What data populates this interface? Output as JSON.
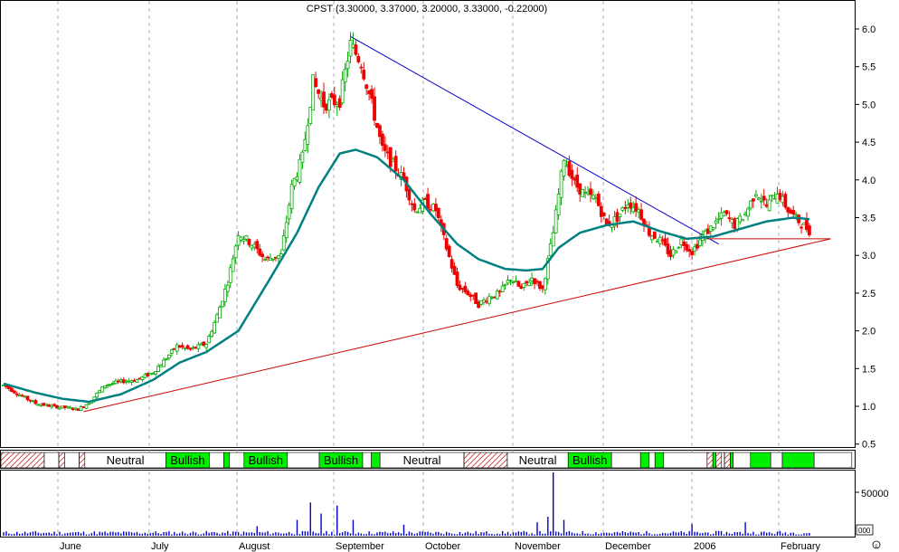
{
  "chart_data": {
    "type": "candlestick",
    "title": "CPST (3.30000, 3.37000, 3.20000, 3.33000, -0.22000)",
    "ohlc_last": {
      "open": 3.3,
      "high": 3.37,
      "low": 3.2,
      "close": 3.33,
      "change": -0.22
    },
    "x_labels": [
      "June",
      "July",
      "August",
      "September",
      "October",
      "November",
      "December",
      "2006",
      "February"
    ],
    "y_ticks": [
      0.5,
      1.0,
      1.5,
      2.0,
      2.5,
      3.0,
      3.5,
      4.0,
      4.5,
      5.0,
      5.5,
      6.0
    ],
    "ylim": [
      0.4,
      6.5
    ],
    "grid": "vertical-dashed",
    "price_path": [
      [
        0,
        1.28
      ],
      [
        6,
        1.15
      ],
      [
        12,
        1.04
      ],
      [
        18,
        1.0
      ],
      [
        24,
        0.98
      ],
      [
        28,
        0.96
      ],
      [
        32,
        1.05
      ],
      [
        38,
        1.28
      ],
      [
        44,
        1.33
      ],
      [
        50,
        1.35
      ],
      [
        56,
        1.45
      ],
      [
        60,
        1.6
      ],
      [
        65,
        1.8
      ],
      [
        70,
        1.75
      ],
      [
        76,
        1.83
      ],
      [
        80,
        2.2
      ],
      [
        84,
        2.65
      ],
      [
        88,
        3.3
      ],
      [
        93,
        3.15
      ],
      [
        98,
        2.95
      ],
      [
        104,
        3.0
      ],
      [
        108,
        3.9
      ],
      [
        112,
        4.3
      ],
      [
        116,
        5.3
      ],
      [
        120,
        5.0
      ],
      [
        126,
        5.05
      ],
      [
        130,
        5.8
      ],
      [
        134,
        5.55
      ],
      [
        138,
        5.0
      ],
      [
        142,
        4.4
      ],
      [
        146,
        4.2
      ],
      [
        150,
        4.0
      ],
      [
        154,
        3.6
      ],
      [
        158,
        3.7
      ],
      [
        162,
        3.6
      ],
      [
        166,
        3.1
      ],
      [
        170,
        2.6
      ],
      [
        174,
        2.5
      ],
      [
        178,
        2.35
      ],
      [
        182,
        2.45
      ],
      [
        186,
        2.5
      ],
      [
        190,
        2.7
      ],
      [
        194,
        2.55
      ],
      [
        198,
        2.7
      ],
      [
        202,
        2.55
      ],
      [
        206,
        3.3
      ],
      [
        210,
        4.3
      ],
      [
        214,
        3.95
      ],
      [
        218,
        3.8
      ],
      [
        222,
        3.75
      ],
      [
        226,
        3.4
      ],
      [
        230,
        3.5
      ],
      [
        234,
        3.7
      ],
      [
        238,
        3.6
      ],
      [
        242,
        3.3
      ],
      [
        246,
        3.2
      ],
      [
        250,
        3.0
      ],
      [
        254,
        3.2
      ],
      [
        258,
        3.05
      ],
      [
        262,
        3.25
      ],
      [
        266,
        3.4
      ],
      [
        270,
        3.55
      ],
      [
        274,
        3.4
      ],
      [
        278,
        3.55
      ],
      [
        282,
        3.85
      ],
      [
        286,
        3.65
      ],
      [
        290,
        3.85
      ],
      [
        294,
        3.6
      ],
      [
        298,
        3.45
      ],
      [
        302,
        3.33
      ]
    ],
    "moving_average": {
      "color": "#008080",
      "values": [
        [
          0,
          1.3
        ],
        [
          12,
          1.18
        ],
        [
          22,
          1.1
        ],
        [
          32,
          1.06
        ],
        [
          44,
          1.16
        ],
        [
          56,
          1.35
        ],
        [
          66,
          1.58
        ],
        [
          76,
          1.72
        ],
        [
          88,
          2.0
        ],
        [
          100,
          2.7
        ],
        [
          110,
          3.3
        ],
        [
          118,
          3.9
        ],
        [
          126,
          4.35
        ],
        [
          132,
          4.4
        ],
        [
          140,
          4.3
        ],
        [
          150,
          4.0
        ],
        [
          160,
          3.55
        ],
        [
          170,
          3.15
        ],
        [
          178,
          2.95
        ],
        [
          188,
          2.82
        ],
        [
          196,
          2.8
        ],
        [
          202,
          2.82
        ],
        [
          208,
          3.1
        ],
        [
          216,
          3.3
        ],
        [
          226,
          3.4
        ],
        [
          236,
          3.45
        ],
        [
          246,
          3.32
        ],
        [
          256,
          3.22
        ],
        [
          266,
          3.25
        ],
        [
          276,
          3.35
        ],
        [
          286,
          3.45
        ],
        [
          296,
          3.5
        ],
        [
          302,
          3.48
        ]
      ]
    },
    "trendlines": [
      {
        "name": "resistance",
        "color": "#0000cc",
        "from": [
          130,
          5.9
        ],
        "to": [
          268,
          3.15
        ]
      },
      {
        "name": "support",
        "color": "#cc0000",
        "from": [
          30,
          0.93
        ],
        "to": [
          310,
          3.22
        ]
      },
      {
        "name": "horizontal",
        "color": "#cc0000",
        "from": [
          262,
          3.22
        ],
        "to": [
          310,
          3.22
        ]
      }
    ],
    "indicator_bands": [
      {
        "state": "bearish",
        "start": 0,
        "end": 15,
        "label": ""
      },
      {
        "state": "neutral",
        "start": 15,
        "end": 20,
        "label": ""
      },
      {
        "state": "bearish",
        "start": 20,
        "end": 22,
        "label": ""
      },
      {
        "state": "neutral",
        "start": 22,
        "end": 27,
        "label": ""
      },
      {
        "state": "bearish",
        "start": 27,
        "end": 29,
        "label": ""
      },
      {
        "state": "neutral",
        "start": 29,
        "end": 57,
        "label": "Neutral"
      },
      {
        "state": "bullish",
        "start": 57,
        "end": 72,
        "label": "Bullish"
      },
      {
        "state": "neutral",
        "start": 72,
        "end": 77,
        "label": ""
      },
      {
        "state": "bullish",
        "start": 77,
        "end": 79,
        "label": ""
      },
      {
        "state": "neutral",
        "start": 79,
        "end": 84,
        "label": ""
      },
      {
        "state": "bullish",
        "start": 84,
        "end": 99,
        "label": "Bullish"
      },
      {
        "state": "neutral",
        "start": 99,
        "end": 110,
        "label": ""
      },
      {
        "state": "bullish",
        "start": 110,
        "end": 125,
        "label": "Bullish"
      },
      {
        "state": "neutral",
        "start": 125,
        "end": 128,
        "label": ""
      },
      {
        "state": "bullish",
        "start": 128,
        "end": 131,
        "label": ""
      },
      {
        "state": "neutral",
        "start": 131,
        "end": 160,
        "label": "Neutral"
      },
      {
        "state": "bearish",
        "start": 160,
        "end": 175,
        "label": ""
      },
      {
        "state": "neutral",
        "start": 175,
        "end": 196,
        "label": "Neutral"
      },
      {
        "state": "bullish",
        "start": 196,
        "end": 211,
        "label": "Bullish"
      },
      {
        "state": "neutral",
        "start": 211,
        "end": 221,
        "label": ""
      },
      {
        "state": "bullish",
        "start": 221,
        "end": 224,
        "label": ""
      },
      {
        "state": "neutral",
        "start": 224,
        "end": 226,
        "label": ""
      },
      {
        "state": "bullish",
        "start": 226,
        "end": 229,
        "label": ""
      },
      {
        "state": "neutral",
        "start": 229,
        "end": 244,
        "label": ""
      },
      {
        "state": "bearish",
        "start": 244,
        "end": 246,
        "label": ""
      },
      {
        "state": "bullish",
        "start": 246,
        "end": 247,
        "label": ""
      },
      {
        "state": "bearish",
        "start": 247,
        "end": 249,
        "label": ""
      },
      {
        "state": "neutral",
        "start": 249,
        "end": 250,
        "label": ""
      },
      {
        "state": "bearish",
        "start": 250,
        "end": 252,
        "label": ""
      },
      {
        "state": "bullish",
        "start": 252,
        "end": 253,
        "label": ""
      },
      {
        "state": "neutral",
        "start": 253,
        "end": 259,
        "label": ""
      },
      {
        "state": "bullish",
        "start": 259,
        "end": 266,
        "label": ""
      },
      {
        "state": "neutral",
        "start": 266,
        "end": 270,
        "label": ""
      },
      {
        "state": "bullish",
        "start": 270,
        "end": 281,
        "label": ""
      },
      {
        "state": "neutral",
        "start": 281,
        "end": 294,
        "label": ""
      }
    ],
    "volume": {
      "y_ticks": [
        50000
      ],
      "ylim": [
        0,
        80000
      ],
      "marker_label": "000",
      "color": "#0000cc",
      "spikes": [
        [
          95,
          12000
        ],
        [
          110,
          20000
        ],
        [
          115,
          42000
        ],
        [
          119,
          28000
        ],
        [
          125,
          38000
        ],
        [
          131,
          20000
        ],
        [
          150,
          14000
        ],
        [
          200,
          17000
        ],
        [
          204,
          24000
        ],
        [
          206,
          80000
        ],
        [
          210,
          20000
        ],
        [
          258,
          15000
        ],
        [
          278,
          17000
        ]
      ]
    },
    "band_colors": {
      "bullish": "#00ee00",
      "neutral": "#ffffff",
      "bearish_stroke": "#cc3333",
      "up_candle": "#00aa00",
      "down_candle": "#ee0000"
    }
  }
}
